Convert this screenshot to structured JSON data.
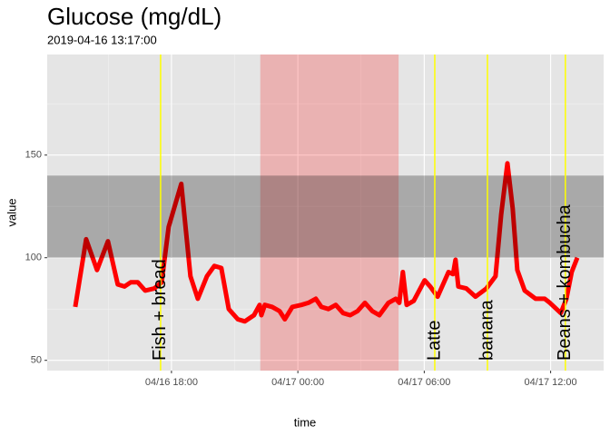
{
  "chart_data": {
    "type": "line",
    "title": "Glucose (mg/dL)",
    "subtitle": "2019-04-16 13:17:00",
    "x_label": "time",
    "y_label": "value",
    "x": [
      "04/16 13:26",
      "04/16 13:57",
      "04/16 14:28",
      "04/16 14:59",
      "04/16 15:27",
      "04/16 15:46",
      "04/16 16:04",
      "04/16 16:24",
      "04/16 16:45",
      "04/16 17:11",
      "04/16 17:32",
      "04/16 17:52",
      "04/16 18:28",
      "04/16 18:54",
      "04/16 19:15",
      "04/16 19:41",
      "04/16 20:02",
      "04/16 20:22",
      "04/16 20:43",
      "04/16 21:09",
      "04/16 21:29",
      "04/16 21:55",
      "04/16 22:11",
      "04/16 22:16",
      "04/16 22:26",
      "04/16 22:47",
      "04/16 23:08",
      "04/16 23:23",
      "04/16 23:44",
      "04/17 00:10",
      "04/17 00:30",
      "04/17 00:51",
      "04/17 01:07",
      "04/17 01:27",
      "04/17 01:48",
      "04/17 02:09",
      "04/17 02:29",
      "04/17 02:50",
      "04/17 03:11",
      "04/17 03:32",
      "04/17 03:52",
      "04/17 04:18",
      "04/17 04:39",
      "04/17 04:49",
      "04/17 04:59",
      "04/17 05:10",
      "04/17 05:30",
      "04/17 06:01",
      "04/17 06:17",
      "04/17 06:38",
      "04/17 07:09",
      "04/17 07:22",
      "04/17 07:29",
      "04/17 07:37",
      "04/17 08:00",
      "04/17 08:26",
      "04/17 08:57",
      "04/17 09:23",
      "04/17 09:39",
      "04/17 09:57",
      "04/17 10:12",
      "04/17 10:25",
      "04/17 10:46",
      "04/17 11:17",
      "04/17 11:43",
      "04/17 11:58",
      "04/17 12:29",
      "04/17 12:45",
      "04/17 13:00",
      "04/17 13:16"
    ],
    "series": [
      {
        "color": "#ff0000",
        "values": [
          76,
          109,
          94,
          108,
          87,
          86,
          88,
          88,
          84,
          85,
          88,
          115,
          136,
          91,
          80,
          91,
          96,
          95,
          75,
          70,
          69,
          72,
          77,
          72,
          77,
          76,
          74,
          70,
          76,
          77,
          78,
          80,
          76,
          75,
          77,
          73,
          72,
          74,
          78,
          74,
          72,
          78,
          80,
          78,
          93,
          77,
          79,
          89,
          86,
          81,
          93,
          92,
          99,
          86,
          85,
          81,
          85,
          91,
          121,
          146,
          124,
          94,
          84,
          80,
          80,
          78,
          73,
          80,
          93,
          100
        ]
      }
    ],
    "xlim": [
      "04/16 12:06",
      "04/17 14:31"
    ],
    "xticks": [
      "04/16 18:00",
      "04/17 00:00",
      "04/17 06:00",
      "04/17 12:00"
    ],
    "ylim": [
      45,
      199
    ],
    "yticks": [
      50,
      100,
      150
    ],
    "grid": true,
    "target_band": {
      "y": [
        100,
        140
      ],
      "color": "#000000",
      "opacity": 0.26
    },
    "highlight": {
      "x": [
        "04/16 22:13",
        "04/17 04:47"
      ],
      "color": "#ff0000",
      "opacity": 0.22
    },
    "events": {
      "color": "#ffff00",
      "x": [
        "04/16 17:29",
        "04/17 06:30",
        "04/17 09:00",
        "04/17 12:42"
      ],
      "labels": [
        "Fish + bread",
        "Latte",
        "banana",
        "Beans + kombucha"
      ]
    }
  }
}
